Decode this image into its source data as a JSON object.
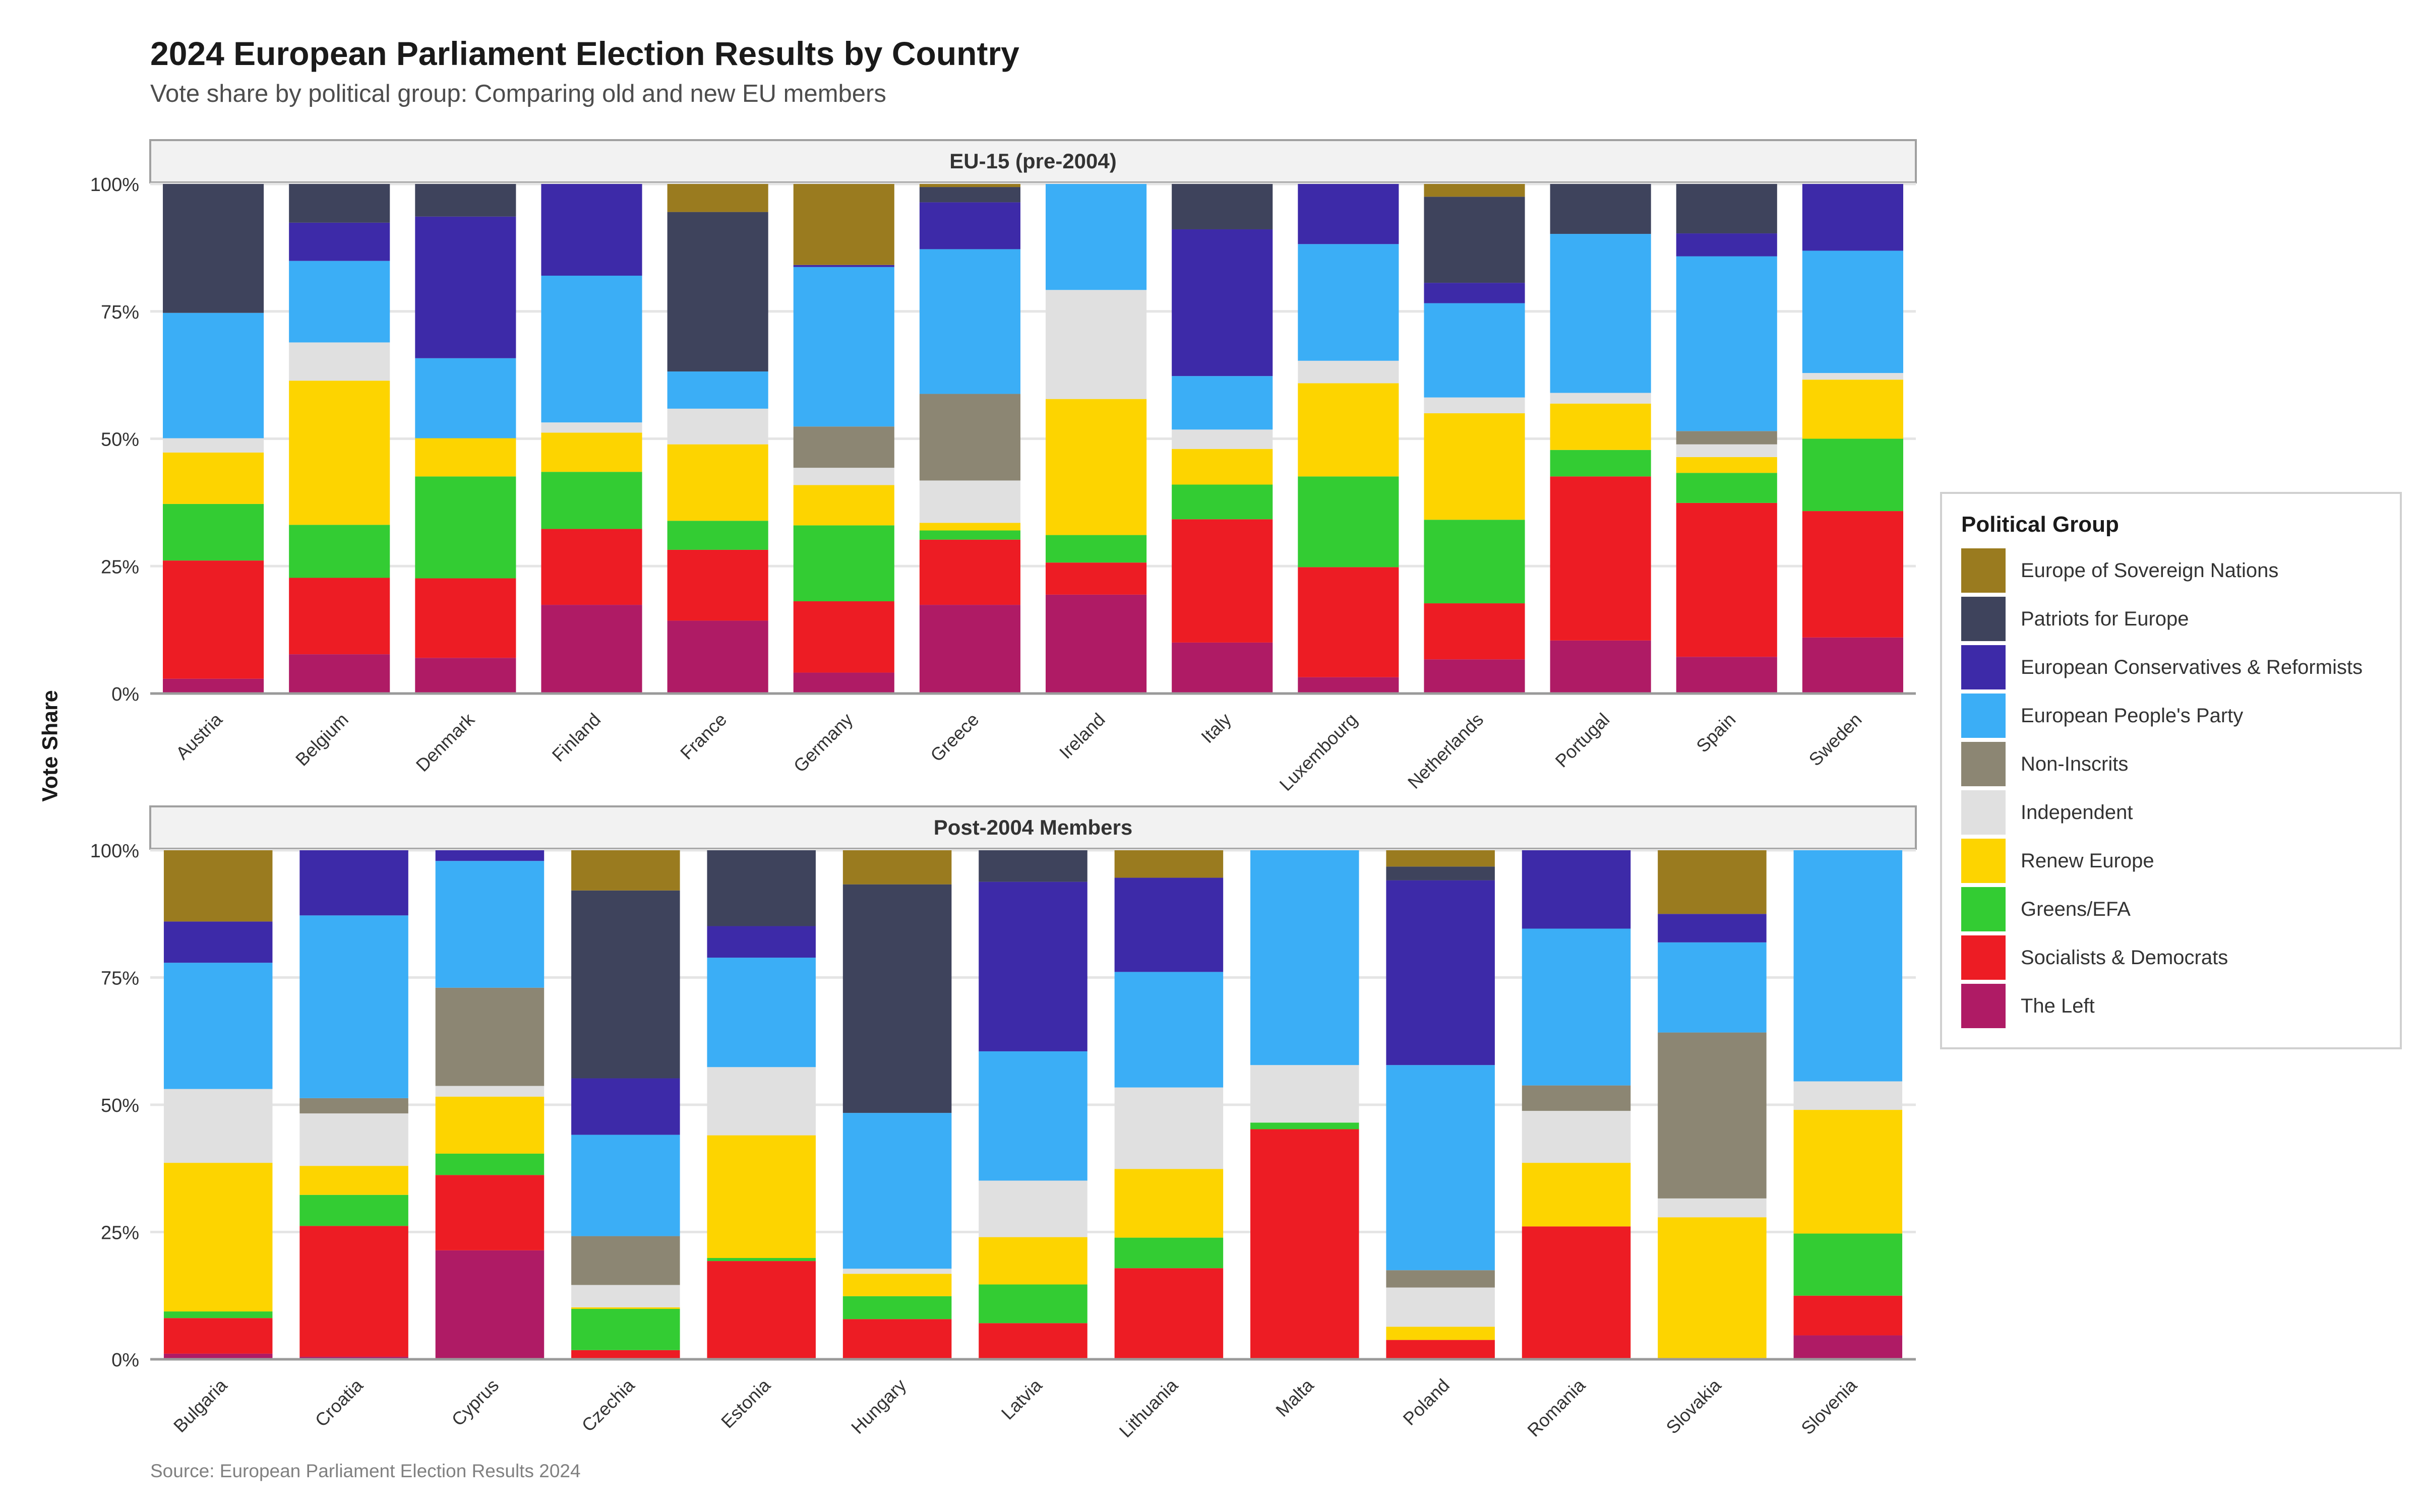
{
  "chart_data": {
    "type": "bar",
    "stacked": true,
    "title": "2024 European Parliament Election Results by Country",
    "subtitle": "Vote share by political group: Comparing old and new EU members",
    "caption": "Source: European Parliament Election Results 2024",
    "ylabel": "Vote Share",
    "xlabel": "",
    "ylim": [
      0,
      100
    ],
    "yticks": [
      "0%",
      "25%",
      "50%",
      "75%",
      "100%"
    ],
    "grid": true,
    "legend": {
      "title": "Political Group",
      "position": "right",
      "items": [
        {
          "name": "Europe of Sovereign Nations",
          "color": "#9A7B1F"
        },
        {
          "name": "Patriots for Europe",
          "color": "#3E435C"
        },
        {
          "name": "European Conservatives & Reformists",
          "color": "#3D2AA8"
        },
        {
          "name": "European People's Party",
          "color": "#3BAEF6"
        },
        {
          "name": "Non-Inscrits",
          "color": "#8C8673"
        },
        {
          "name": "Independent",
          "color": "#E0E0E0"
        },
        {
          "name": "Renew Europe",
          "color": "#FDD400"
        },
        {
          "name": "Greens/EFA",
          "color": "#33CC33"
        },
        {
          "name": "Socialists & Democrats",
          "color": "#ED1C24"
        },
        {
          "name": "The Left",
          "color": "#AF1B65"
        }
      ]
    },
    "stack_order_bottom_to_top": [
      "The Left",
      "Socialists & Democrats",
      "Greens/EFA",
      "Renew Europe",
      "Independent",
      "Non-Inscrits",
      "European People's Party",
      "European Conservatives & Reformists",
      "Patriots for Europe",
      "Europe of Sovereign Nations"
    ],
    "panels": [
      {
        "title": "EU-15 (pre-2004)",
        "categories": [
          "Austria",
          "Belgium",
          "Denmark",
          "Finland",
          "France",
          "Germany",
          "Greece",
          "Ireland",
          "Italy",
          "Luxembourg",
          "Netherlands",
          "Portugal",
          "Spain",
          "Sweden"
        ],
        "series": [
          {
            "name": "The Left",
            "values": [
              2.9,
              7.7,
              7.0,
              17.4,
              14.3,
              4.1,
              17.4,
              19.4,
              10.0,
              3.2,
              6.7,
              10.4,
              7.2,
              11.0
            ]
          },
          {
            "name": "Socialists & Democrats",
            "values": [
              23.2,
              15.0,
              15.6,
              14.9,
              13.9,
              14.0,
              12.8,
              6.3,
              24.2,
              21.6,
              11.0,
              32.2,
              30.2,
              24.8
            ]
          },
          {
            "name": "Greens/EFA",
            "values": [
              11.1,
              10.4,
              20.0,
              11.2,
              5.7,
              14.9,
              1.8,
              5.4,
              6.8,
              17.8,
              16.4,
              5.2,
              5.9,
              14.2
            ]
          },
          {
            "name": "Renew Europe",
            "values": [
              10.1,
              28.3,
              7.5,
              7.7,
              15.0,
              7.9,
              1.5,
              26.7,
              7.0,
              18.3,
              20.9,
              9.1,
              3.1,
              11.6
            ]
          },
          {
            "name": "Independent",
            "values": [
              2.8,
              7.5,
              0,
              2.0,
              7.0,
              3.4,
              8.3,
              21.4,
              3.8,
              4.4,
              3.1,
              2.1,
              2.5,
              1.3
            ]
          },
          {
            "name": "Non-Inscrits",
            "values": [
              0,
              0,
              0,
              0,
              0,
              8.1,
              17.0,
              0,
              0,
              0,
              0,
              0,
              2.6,
              0
            ]
          },
          {
            "name": "European People's Party",
            "values": [
              24.6,
              16.0,
              15.7,
              28.8,
              7.3,
              31.3,
              28.4,
              20.8,
              10.5,
              22.9,
              18.5,
              31.2,
              34.3,
              24.0
            ]
          },
          {
            "name": "European Conservatives & Reformists",
            "values": [
              0,
              7.5,
              27.8,
              18.0,
              0,
              0.4,
              9.2,
              0,
              28.8,
              11.8,
              4.0,
              0,
              4.5,
              13.1
            ]
          },
          {
            "name": "Patriots for Europe",
            "values": [
              25.3,
              7.6,
              6.4,
              0,
              31.3,
              0,
              3.0,
              0,
              8.9,
              0,
              16.9,
              9.8,
              9.7,
              0
            ]
          },
          {
            "name": "Europe of Sovereign Nations",
            "values": [
              0,
              0,
              0,
              0,
              5.5,
              15.9,
              0.6,
              0,
              0,
              0,
              2.5,
              0,
              0,
              0
            ]
          }
        ]
      },
      {
        "title": "Post-2004 Members",
        "categories": [
          "Bulgaria",
          "Croatia",
          "Cyprus",
          "Czechia",
          "Estonia",
          "Hungary",
          "Latvia",
          "Lithuania",
          "Malta",
          "Poland",
          "Romania",
          "Slovakia",
          "Slovenia"
        ],
        "series": [
          {
            "name": "The Left",
            "values": [
              1.1,
              0.5,
              21.4,
              0,
              0,
              0,
              0,
              0,
              0,
              0,
              0.2,
              0,
              4.7
            ]
          },
          {
            "name": "Socialists & Democrats",
            "values": [
              7.0,
              25.7,
              14.8,
              1.8,
              19.3,
              7.9,
              7.1,
              17.9,
              45.2,
              3.8,
              25.9,
              0,
              7.8
            ]
          },
          {
            "name": "Greens/EFA",
            "values": [
              1.3,
              6.1,
              4.2,
              8.1,
              0.6,
              4.5,
              7.6,
              6.0,
              1.3,
              0,
              0,
              0,
              12.2
            ]
          },
          {
            "name": "Renew Europe",
            "values": [
              29.2,
              5.7,
              11.2,
              0.3,
              24.1,
              4.4,
              9.3,
              13.5,
              0,
              2.6,
              12.5,
              27.9,
              24.3
            ]
          },
          {
            "name": "Independent",
            "values": [
              14.5,
              10.3,
              2.1,
              4.4,
              13.4,
              1.0,
              11.1,
              16.0,
              11.3,
              7.7,
              10.2,
              3.7,
              5.6
            ]
          },
          {
            "name": "Non-Inscrits",
            "values": [
              0,
              3.0,
              19.3,
              9.6,
              0,
              0,
              0,
              0,
              0,
              3.4,
              5.0,
              32.6,
              0
            ]
          },
          {
            "name": "European People's Party",
            "values": [
              24.8,
              35.9,
              24.9,
              19.9,
              21.5,
              30.6,
              25.4,
              22.7,
              42.2,
              40.3,
              30.8,
              17.7,
              45.4
            ]
          },
          {
            "name": "European Conservatives & Reformists",
            "values": [
              8.1,
              12.8,
              2.1,
              11.1,
              6.2,
              0,
              33.3,
              18.5,
              0,
              36.3,
              15.4,
              5.6,
              0
            ]
          },
          {
            "name": "Patriots for Europe",
            "values": [
              0,
              0,
              0,
              36.9,
              14.9,
              44.9,
              6.2,
              0,
              0,
              2.7,
              0,
              0,
              0
            ]
          },
          {
            "name": "Europe of Sovereign Nations",
            "values": [
              14.0,
              0,
              0,
              7.9,
              0,
              6.7,
              0,
              5.4,
              0,
              3.2,
              0,
              12.5,
              0
            ]
          }
        ]
      }
    ]
  }
}
